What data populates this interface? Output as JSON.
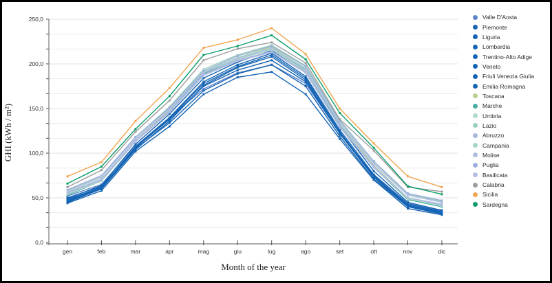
{
  "chart_data": {
    "type": "line",
    "title": "",
    "xlabel": "Month of the year",
    "ylabel": "GHI (kWh / m²)",
    "legend_position": "right",
    "grid": "horizontal",
    "categories": [
      "gen",
      "feb",
      "mar",
      "apr",
      "mag",
      "giu",
      "lug",
      "ago",
      "set",
      "ott",
      "nov",
      "dic"
    ],
    "y_axis": {
      "min": 0,
      "max": 250,
      "major_step": 50,
      "minor_divisions": 3,
      "tick_labels": [
        "0,0",
        "50,0",
        "100,0",
        "150,0",
        "200,0",
        "250,0"
      ]
    },
    "series": [
      {
        "name": "Valle D'Aosta",
        "color": "#5b84c9",
        "values": [
          52,
          65,
          108,
          140,
          172,
          190,
          199,
          178,
          122,
          76,
          44,
          36
        ]
      },
      {
        "name": "Piemonte",
        "color": "#1464b4",
        "values": [
          50,
          63,
          106,
          138,
          175,
          193,
          204,
          180,
          122,
          75,
          43,
          35
        ]
      },
      {
        "name": "Liguria",
        "color": "#1464b4",
        "values": [
          44,
          58,
          102,
          130,
          166,
          185,
          191,
          166,
          116,
          70,
          38,
          31
        ]
      },
      {
        "name": "Lombardia",
        "color": "#1464b4",
        "values": [
          45,
          60,
          104,
          136,
          176,
          196,
          208,
          182,
          122,
          73,
          40,
          32
        ]
      },
      {
        "name": "Trentino-Alto Adige",
        "color": "#1464b4",
        "values": [
          48,
          62,
          105,
          134,
          170,
          189,
          199,
          175,
          119,
          71,
          40,
          33
        ]
      },
      {
        "name": "Veneto",
        "color": "#1464b4",
        "values": [
          47,
          62,
          107,
          140,
          180,
          199,
          212,
          186,
          126,
          76,
          42,
          34
        ]
      },
      {
        "name": "Friuli Venezia Giulia",
        "color": "#1464b4",
        "values": [
          46,
          61,
          106,
          139,
          178,
          197,
          210,
          184,
          124,
          74,
          41,
          33
        ]
      },
      {
        "name": "Emilia Romagna",
        "color": "#1464b4",
        "values": [
          49,
          64,
          110,
          144,
          184,
          202,
          215,
          190,
          130,
          80,
          45,
          36
        ]
      },
      {
        "name": "Toscana",
        "color": "#b8cf8f",
        "values": [
          55,
          70,
          114,
          148,
          190,
          207,
          219,
          195,
          133,
          86,
          50,
          42
        ]
      },
      {
        "name": "Marche",
        "color": "#46ada1",
        "values": [
          53,
          69,
          113,
          147,
          189,
          206,
          217,
          193,
          131,
          84,
          48,
          40
        ]
      },
      {
        "name": "Umbria",
        "color": "#aedbca",
        "values": [
          54,
          69,
          113,
          146,
          188,
          205,
          216,
          192,
          130,
          84,
          49,
          41
        ]
      },
      {
        "name": "Lazio",
        "color": "#98d1ba",
        "values": [
          58,
          74,
          118,
          152,
          194,
          210,
          221,
          198,
          137,
          91,
          54,
          46
        ]
      },
      {
        "name": "Abruzzo",
        "color": "#a9b6dd",
        "values": [
          56,
          71,
          114,
          147,
          188,
          204,
          214,
          191,
          130,
          85,
          50,
          43
        ]
      },
      {
        "name": "Campania",
        "color": "#a3d6c4",
        "values": [
          57,
          73,
          116,
          150,
          191,
          207,
          218,
          195,
          134,
          89,
          53,
          45
        ]
      },
      {
        "name": "Molise",
        "color": "#aebce1",
        "values": [
          55,
          70,
          113,
          146,
          187,
          203,
          213,
          190,
          129,
          84,
          50,
          42
        ]
      },
      {
        "name": "Puglia",
        "color": "#9caede",
        "values": [
          59,
          75,
          118,
          151,
          192,
          209,
          220,
          197,
          136,
          91,
          55,
          47
        ]
      },
      {
        "name": "Basilicata",
        "color": "#b3bfe4",
        "values": [
          58,
          74,
          116,
          149,
          190,
          206,
          217,
          194,
          133,
          88,
          53,
          45
        ]
      },
      {
        "name": "Calabria",
        "color": "#9c9c9c",
        "values": [
          62,
          81,
          124,
          159,
          204,
          217,
          224,
          201,
          138,
          103,
          62,
          57
        ]
      },
      {
        "name": "Sicilia",
        "color": "#f2a44e",
        "values": [
          74,
          90,
          136,
          173,
          218,
          227,
          240,
          211,
          150,
          111,
          74,
          62
        ]
      },
      {
        "name": "Sardegna",
        "color": "#0b9e68",
        "values": [
          66,
          85,
          127,
          164,
          210,
          220,
          232,
          205,
          145,
          106,
          63,
          54
        ]
      }
    ]
  },
  "colors": {
    "axis": "#7a7a7a",
    "tick": "#4a4a4a",
    "grid_minor": "#ebebeb",
    "grid_major": "#e0e0e0",
    "frame_border": "#000000"
  }
}
